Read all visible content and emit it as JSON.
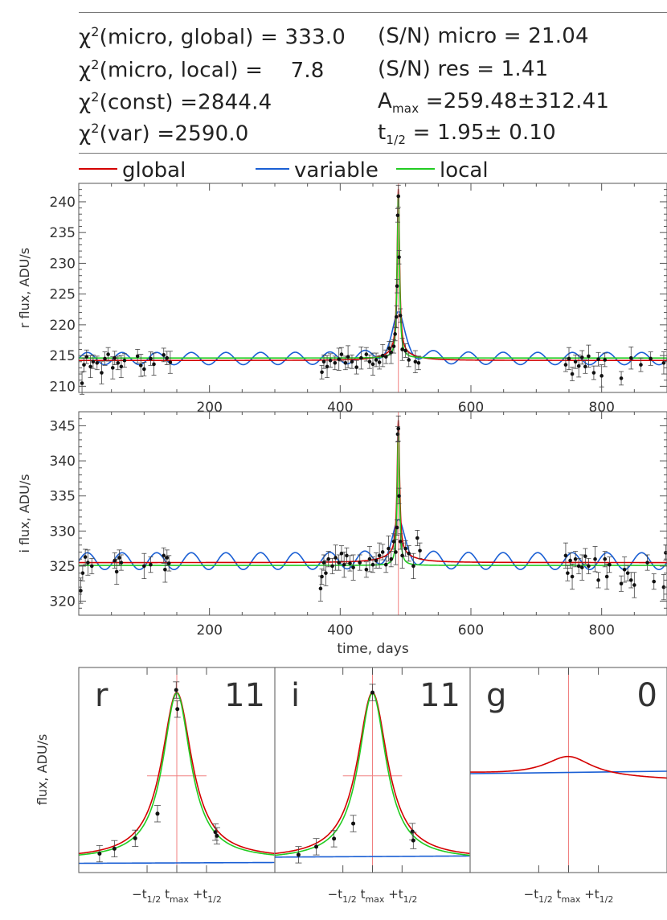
{
  "stats": {
    "chi2_global": {
      "symbol": "χ",
      "sup": "2",
      "label": "(micro, global) = ",
      "value": "333.0"
    },
    "chi2_local": {
      "symbol": "χ",
      "sup": "2",
      "label": "(micro, local) = ",
      "value": "7.8"
    },
    "chi2_const": {
      "symbol": "χ",
      "sup": "2",
      "label": "(const) =",
      "value": "2844.4"
    },
    "chi2_var": {
      "symbol": "χ",
      "sup": "2",
      "label": "(var) =",
      "value": "2590.0"
    },
    "sn_micro": {
      "label": "(S/N) micro = ",
      "value": "21.04"
    },
    "sn_res": {
      "label": "(S/N) res = ",
      "value": "1.41"
    },
    "amax": {
      "symbol": "A",
      "sub": "max",
      "label": " =",
      "value": "259.48±312.41"
    },
    "thalf": {
      "symbol": "t",
      "sub": "1/2",
      "label": " =  ",
      "value": "1.95±  0.10"
    }
  },
  "legend": {
    "global": {
      "label": "global",
      "color": "#d40000"
    },
    "variable": {
      "label": "variable",
      "color": "#1a5fd4"
    },
    "local": {
      "label": "local",
      "color": "#22cc22"
    }
  },
  "chart_data": [
    {
      "type": "line",
      "id": "r-lightcurve",
      "ylabel": "r flux, ADU/s",
      "xlabel": "",
      "xlim": [
        0,
        900
      ],
      "ylim": [
        209,
        243
      ],
      "xticks": [
        200,
        400,
        600,
        800
      ],
      "yticks": [
        210,
        215,
        220,
        225,
        230,
        235,
        240
      ],
      "t_max": 489,
      "baseline": {
        "global": 214.2,
        "local": 214.6,
        "variable_mean": 214.5,
        "variable_amp": 1.0,
        "variable_period": 53
      },
      "points": [
        [
          5,
          210.5
        ],
        [
          8,
          213.5
        ],
        [
          12,
          214.8
        ],
        [
          18,
          213.2
        ],
        [
          22,
          214.0
        ],
        [
          28,
          213.8
        ],
        [
          35,
          212.2
        ],
        [
          40,
          214.5
        ],
        [
          45,
          215.2
        ],
        [
          52,
          213.0
        ],
        [
          55,
          214.6
        ],
        [
          60,
          213.8
        ],
        [
          65,
          213.2
        ],
        [
          70,
          214.2
        ],
        [
          90,
          214.9
        ],
        [
          95,
          213.4
        ],
        [
          100,
          212.8
        ],
        [
          110,
          214.5
        ],
        [
          115,
          213.6
        ],
        [
          130,
          215.1
        ],
        [
          135,
          214.6
        ],
        [
          140,
          213.9
        ],
        [
          372,
          212.3
        ],
        [
          375,
          214.0
        ],
        [
          380,
          213.2
        ],
        [
          385,
          214.2
        ],
        [
          392,
          213.8
        ],
        [
          398,
          214.4
        ],
        [
          402,
          215.2
        ],
        [
          408,
          213.8
        ],
        [
          412,
          214.8
        ],
        [
          418,
          214.0
        ],
        [
          425,
          213.1
        ],
        [
          432,
          214.6
        ],
        [
          440,
          215.2
        ],
        [
          445,
          214.0
        ],
        [
          450,
          213.6
        ],
        [
          455,
          214.3
        ],
        [
          460,
          213.9
        ],
        [
          465,
          215.0
        ],
        [
          470,
          214.8
        ],
        [
          475,
          216.2
        ],
        [
          478,
          215.5
        ],
        [
          482,
          216.5
        ],
        [
          484,
          218.5
        ],
        [
          486,
          221.3
        ],
        [
          487,
          226.3
        ],
        [
          488,
          237.8
        ],
        [
          489,
          240.9
        ],
        [
          490,
          231.0
        ],
        [
          492,
          221.5
        ],
        [
          495,
          216.0
        ],
        [
          500,
          215.8
        ],
        [
          505,
          214.3
        ],
        [
          515,
          214.0
        ],
        [
          520,
          213.8
        ],
        [
          745,
          213.5
        ],
        [
          750,
          214.5
        ],
        [
          755,
          212.0
        ],
        [
          760,
          214.0
        ],
        [
          765,
          213.3
        ],
        [
          770,
          214.7
        ],
        [
          775,
          213.2
        ],
        [
          780,
          214.9
        ],
        [
          788,
          212.2
        ],
        [
          795,
          214.4
        ],
        [
          800,
          211.7
        ],
        [
          805,
          214.3
        ],
        [
          830,
          211.3
        ],
        [
          845,
          214.6
        ],
        [
          860,
          213.5
        ],
        [
          875,
          214.5
        ],
        [
          895,
          213.8
        ]
      ]
    },
    {
      "type": "line",
      "id": "i-lightcurve",
      "ylabel": "i flux, ADU/s",
      "xlabel": "time, days",
      "xlim": [
        0,
        900
      ],
      "ylim": [
        318,
        347
      ],
      "xticks": [
        200,
        400,
        600,
        800
      ],
      "yticks": [
        320,
        325,
        330,
        335,
        340,
        345
      ],
      "t_max": 489,
      "baseline": {
        "global": 325.5,
        "local": 325.1,
        "variable_mean": 325.7,
        "variable_amp": 1.2,
        "variable_period": 53
      },
      "points": [
        [
          3,
          321.5
        ],
        [
          6,
          324.0
        ],
        [
          10,
          326.3
        ],
        [
          14,
          325.5
        ],
        [
          20,
          325.0
        ],
        [
          55,
          325.8
        ],
        [
          58,
          324.2
        ],
        [
          62,
          326.2
        ],
        [
          65,
          325.5
        ],
        [
          100,
          325.0
        ],
        [
          110,
          325.2
        ],
        [
          130,
          326.5
        ],
        [
          132,
          324.5
        ],
        [
          135,
          326.2
        ],
        [
          138,
          325.4
        ],
        [
          370,
          321.8
        ],
        [
          372,
          323.5
        ],
        [
          375,
          325.5
        ],
        [
          378,
          324.0
        ],
        [
          382,
          326.0
        ],
        [
          388,
          325.0
        ],
        [
          393,
          326.2
        ],
        [
          398,
          325.5
        ],
        [
          402,
          326.8
        ],
        [
          406,
          325.2
        ],
        [
          410,
          326.5
        ],
        [
          415,
          325.4
        ],
        [
          420,
          324.8
        ],
        [
          430,
          325.5
        ],
        [
          440,
          324.5
        ],
        [
          445,
          326.0
        ],
        [
          450,
          325.2
        ],
        [
          455,
          325.8
        ],
        [
          460,
          326.5
        ],
        [
          465,
          327.0
        ],
        [
          470,
          325.2
        ],
        [
          474,
          327.5
        ],
        [
          478,
          326.0
        ],
        [
          482,
          328.5
        ],
        [
          485,
          327.0
        ],
        [
          487,
          330.5
        ],
        [
          488,
          343.8
        ],
        [
          489,
          344.6
        ],
        [
          490,
          335.0
        ],
        [
          492,
          328.5
        ],
        [
          495,
          326.5
        ],
        [
          500,
          327.5
        ],
        [
          505,
          326.8
        ],
        [
          512,
          325.0
        ],
        [
          518,
          329.0
        ],
        [
          522,
          327.2
        ],
        [
          745,
          326.5
        ],
        [
          748,
          324.0
        ],
        [
          752,
          325.8
        ],
        [
          755,
          323.5
        ],
        [
          760,
          326.0
        ],
        [
          765,
          325.0
        ],
        [
          770,
          324.8
        ],
        [
          775,
          326.4
        ],
        [
          780,
          325.0
        ],
        [
          790,
          326.0
        ],
        [
          795,
          323.0
        ],
        [
          805,
          326.0
        ],
        [
          808,
          323.5
        ],
        [
          812,
          325.2
        ],
        [
          830,
          322.5
        ],
        [
          835,
          324.5
        ],
        [
          840,
          324.0
        ],
        [
          845,
          323.0
        ],
        [
          850,
          322.3
        ],
        [
          870,
          325.5
        ],
        [
          880,
          322.8
        ],
        [
          895,
          322.0
        ],
        [
          898,
          326.9
        ]
      ]
    },
    {
      "type": "line",
      "id": "r-zoom",
      "band": "r",
      "count": "11",
      "ylabel": "flux, ADU/s",
      "xticks": [
        "−t",
        "t",
        "+t"
      ],
      "points_rel": [
        [
          -2.6,
          214.3
        ],
        [
          -2.1,
          215.1
        ],
        [
          -1.4,
          216.8
        ],
        [
          -0.65,
          220.8
        ],
        [
          -0.02,
          240.9
        ],
        [
          0.02,
          237.8
        ],
        [
          1.3,
          217.8
        ],
        [
          1.35,
          217.2
        ]
      ]
    },
    {
      "type": "line",
      "id": "i-zoom",
      "band": "i",
      "count": "11",
      "points_rel": [
        [
          -2.5,
          325.8
        ],
        [
          -1.9,
          326.7
        ],
        [
          -1.3,
          327.6
        ],
        [
          -0.65,
          329.3
        ],
        [
          0.0,
          344.0
        ],
        [
          1.35,
          328.4
        ],
        [
          1.38,
          327.4
        ]
      ]
    },
    {
      "type": "line",
      "id": "g-zoom",
      "band": "g",
      "count": "0",
      "points_rel": []
    }
  ],
  "axis_labels": {
    "zoom_minus": "−t",
    "zoom_minus_sub": "1/2",
    "zoom_center": " t",
    "zoom_center_sub": "max",
    "zoom_plus": " +t",
    "zoom_plus_sub": "1/2"
  }
}
